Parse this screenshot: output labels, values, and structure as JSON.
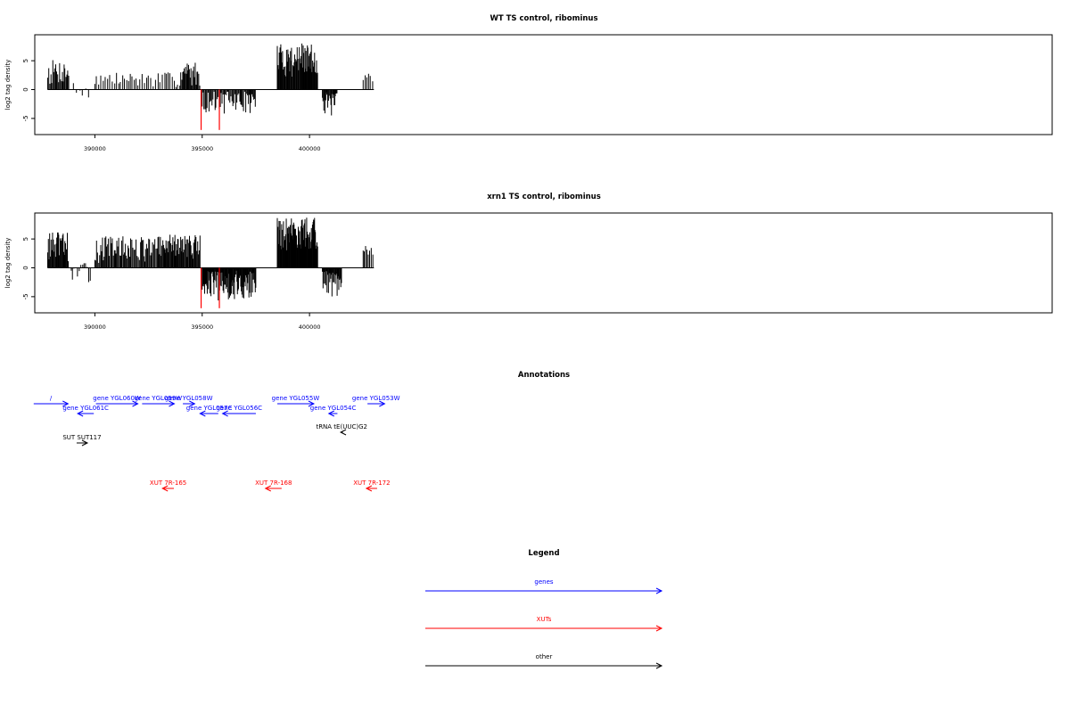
{
  "chart_data": [
    {
      "type": "bar",
      "title": "WT TS control, ribominus",
      "ylabel": "log2 tag density",
      "xlim": [
        387200,
        434600
      ],
      "ylim": [
        -7.8,
        9.5
      ],
      "yticks": [
        -5,
        0,
        5
      ],
      "xticks": [
        390000,
        395000,
        400000
      ],
      "xtick_labels": [
        "390000",
        "395000",
        "400000"
      ],
      "baseline": 0,
      "colors": {
        "bars": "#000000",
        "highlight": "#ff0000"
      },
      "highlights": [
        {
          "x": 394950,
          "value": -7.0
        },
        {
          "x": 395800,
          "value": -7.0
        }
      ],
      "segments": [
        {
          "start": 387800,
          "end": 388800,
          "min": 0.6,
          "max": 5.2,
          "step": 42
        },
        {
          "start": 389000,
          "end": 389800,
          "min": -2.3,
          "max": 1.5,
          "step": 130
        },
        {
          "start": 390000,
          "end": 394000,
          "min": 0.3,
          "max": 3.0,
          "step": 95
        },
        {
          "start": 394000,
          "end": 394900,
          "min": 0.6,
          "max": 4.8,
          "step": 40
        },
        {
          "start": 395000,
          "end": 397500,
          "min": -4.2,
          "max": -0.3,
          "step": 45
        },
        {
          "start": 398500,
          "end": 400400,
          "min": 2.0,
          "max": 8.0,
          "step": 30
        },
        {
          "start": 400600,
          "end": 401300,
          "min": -4.8,
          "max": -0.5,
          "step": 32
        },
        {
          "start": 402500,
          "end": 403000,
          "min": 0.4,
          "max": 3.0,
          "step": 95
        }
      ]
    },
    {
      "type": "bar",
      "title": "xrn1 TS control, ribominus",
      "ylabel": "log2 tag density",
      "xlim": [
        387200,
        434600
      ],
      "ylim": [
        -7.8,
        9.5
      ],
      "yticks": [
        -5,
        0,
        5
      ],
      "xticks": [
        390000,
        395000,
        400000
      ],
      "xtick_labels": [
        "390000",
        "395000",
        "400000"
      ],
      "baseline": 0,
      "colors": {
        "bars": "#000000",
        "highlight": "#ff0000"
      },
      "highlights": [
        {
          "x": 394950,
          "value": -7.0
        },
        {
          "x": 395800,
          "value": -7.0
        }
      ],
      "segments": [
        {
          "start": 387800,
          "end": 388800,
          "min": 1.0,
          "max": 6.2,
          "step": 35
        },
        {
          "start": 388900,
          "end": 389800,
          "min": -2.8,
          "max": 0.8,
          "step": 70
        },
        {
          "start": 390000,
          "end": 393200,
          "min": 0.8,
          "max": 5.5,
          "step": 45
        },
        {
          "start": 393200,
          "end": 394900,
          "min": 1.5,
          "max": 5.8,
          "step": 35
        },
        {
          "start": 395000,
          "end": 397500,
          "min": -6.0,
          "max": -0.5,
          "step": 28
        },
        {
          "start": 398500,
          "end": 400400,
          "min": 3.0,
          "max": 8.8,
          "step": 25
        },
        {
          "start": 400600,
          "end": 401500,
          "min": -6.0,
          "max": -0.5,
          "step": 28
        },
        {
          "start": 402500,
          "end": 403000,
          "min": 0.8,
          "max": 4.0,
          "step": 60
        }
      ]
    }
  ],
  "annotations": {
    "title": "Annotations",
    "colors": {
      "gene": "#0000ff",
      "xut": "#ff0000",
      "other": "#000000"
    },
    "features": [
      {
        "label": "/",
        "type": "gene",
        "strand": "+",
        "start": 387150,
        "end": 388750,
        "row": 0
      },
      {
        "label": "gene YGL061C",
        "type": "gene",
        "strand": "-",
        "start": 389200,
        "end": 389950,
        "row": 1
      },
      {
        "label": "gene YGL060W",
        "type": "gene",
        "strand": "+",
        "start": 390050,
        "end": 392000,
        "row": 0
      },
      {
        "label": "gene YGL059W",
        "type": "gene",
        "strand": "+",
        "start": 392200,
        "end": 393700,
        "row": 0
      },
      {
        "label": "gene YGL058W",
        "type": "gene",
        "strand": "+",
        "start": 394100,
        "end": 394650,
        "row": 0
      },
      {
        "label": "gene YGL057C",
        "type": "gene",
        "strand": "-",
        "start": 394900,
        "end": 395750,
        "row": 1
      },
      {
        "label": "gene YGL056C",
        "type": "gene",
        "strand": "-",
        "start": 395950,
        "end": 397500,
        "row": 1
      },
      {
        "label": "gene YGL055W",
        "type": "gene",
        "strand": "+",
        "start": 398500,
        "end": 400200,
        "row": 0
      },
      {
        "label": "gene YGL054C",
        "type": "gene",
        "strand": "-",
        "start": 400900,
        "end": 401300,
        "row": 1
      },
      {
        "label": "gene YGL053W",
        "type": "gene",
        "strand": "+",
        "start": 402700,
        "end": 403500,
        "row": 0
      },
      {
        "label": "SUT SUT117",
        "type": "other",
        "strand": "+",
        "start": 389150,
        "end": 389650,
        "row": 2
      },
      {
        "label": "tRNA tE(UUC)G2",
        "type": "other",
        "strand": "-",
        "start": 401450,
        "end": 401550,
        "row": 3
      },
      {
        "label": "XUT 7R-165",
        "type": "xut",
        "strand": "-",
        "start": 393150,
        "end": 393680,
        "row": 4
      },
      {
        "label": "XUT 7R-168",
        "type": "xut",
        "strand": "-",
        "start": 397950,
        "end": 398700,
        "row": 4
      },
      {
        "label": "XUT 7R-172",
        "type": "xut",
        "strand": "-",
        "start": 402650,
        "end": 403150,
        "row": 4
      }
    ]
  },
  "legend": {
    "title": "Legend",
    "items": [
      {
        "label": "genes",
        "color": "#0000ff"
      },
      {
        "label": "XUTs",
        "color": "#ff0000"
      },
      {
        "label": "other",
        "color": "#000000"
      }
    ]
  }
}
